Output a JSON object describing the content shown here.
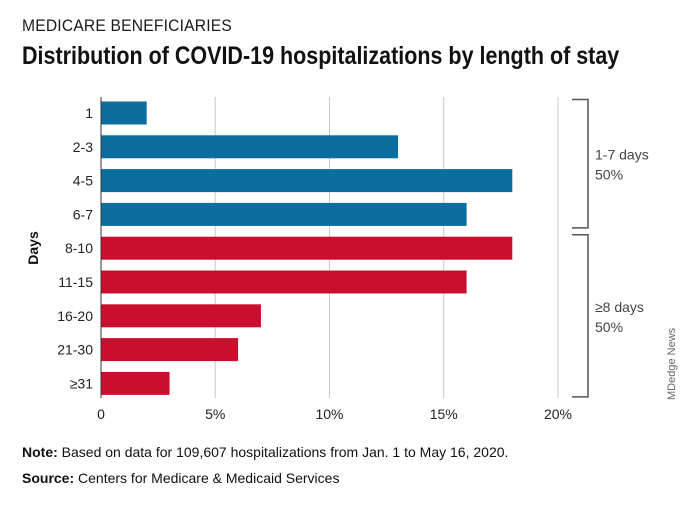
{
  "header": {
    "kicker": "MEDICARE BENEFICIARIES",
    "title": "Distribution of COVID-19 hospitalizations by length of stay"
  },
  "chart_data": {
    "type": "bar",
    "orientation": "horizontal",
    "ylabel": "Days",
    "xlabel": "",
    "categories": [
      "1",
      "2-3",
      "4-5",
      "6-7",
      "8-10",
      "11-15",
      "16-20",
      "21-30",
      "≥31"
    ],
    "values": [
      2,
      13,
      18,
      16,
      18,
      16,
      7,
      6,
      3
    ],
    "unit": "%",
    "xlim": [
      0,
      20
    ],
    "x_ticks": [
      0,
      5,
      10,
      15,
      20
    ],
    "x_tick_labels": [
      "0",
      "5%",
      "10%",
      "15%",
      "20%"
    ],
    "grid": true,
    "bar_colors": [
      "#0b6e9e",
      "#0b6e9e",
      "#0b6e9e",
      "#0b6e9e",
      "#c8102e",
      "#c8102e",
      "#c8102e",
      "#c8102e",
      "#c8102e"
    ],
    "groups": [
      {
        "label_line1": "1-7 days",
        "label_line2": "50%",
        "from_index": 0,
        "to_index": 3
      },
      {
        "label_line1": "≥8 days",
        "label_line2": "50%",
        "from_index": 4,
        "to_index": 8
      }
    ]
  },
  "footer": {
    "note_label": "Note:",
    "note_text": " Based on data for 109,607 hospitalizations from Jan. 1 to May 16, 2020.",
    "source_label": "Source:",
    "source_text": " Centers for Medicare & Medicaid Services"
  },
  "credit": "MDedge News",
  "colors": {
    "blue": "#0b6e9e",
    "red": "#c8102e",
    "grid": "#c8c8c8",
    "bracket": "#555555"
  }
}
